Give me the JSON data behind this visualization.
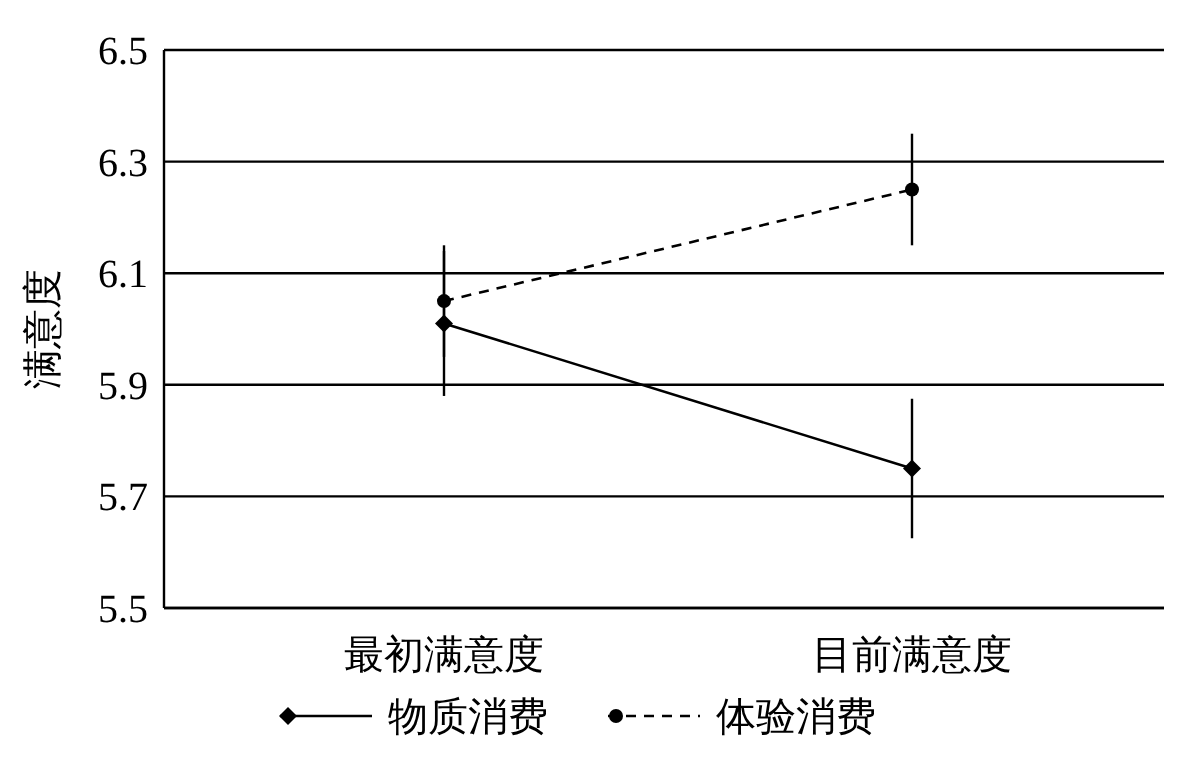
{
  "chart_data": {
    "type": "line",
    "ylabel": "满意度",
    "categories": [
      "最初满意度",
      "目前满意度"
    ],
    "series": [
      {
        "name": "物质消费",
        "color": "#000000",
        "values": [
          6.01,
          5.75
        ],
        "errors": [
          0.13,
          0.125
        ],
        "marker": "diamond",
        "line_style": "solid"
      },
      {
        "name": "体验消费",
        "color": "#000000",
        "values": [
          6.05,
          6.25
        ],
        "errors": [
          0.1,
          0.1
        ],
        "marker": "circle",
        "line_style": "dashed"
      }
    ],
    "ylim": [
      5.5,
      6.5
    ],
    "yticks": [
      5.5,
      5.7,
      5.9,
      6.1,
      6.3,
      6.5
    ],
    "grid": "y",
    "legend": "bottom"
  }
}
